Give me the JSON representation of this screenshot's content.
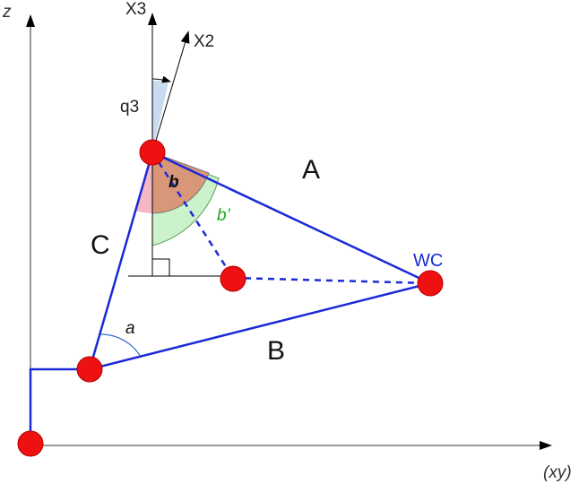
{
  "axes": {
    "vertical_label": "z",
    "horizontal_label": "(xy)"
  },
  "frame_axes": {
    "x3_label": "X3",
    "x2_label": "X2",
    "q3_label": "q3"
  },
  "sides": {
    "a_label": "A",
    "b_label": "B",
    "c_label": "C"
  },
  "angles": {
    "a_label": "a",
    "b_label": "b",
    "b_prime_label": "b’"
  },
  "points": {
    "wrist_center_label": "WC"
  },
  "colors": {
    "link_blue": "#1a2bd6",
    "joint_red": "#ee1111",
    "angle_b_fill": "#d9977a",
    "angle_b_prime_fill": "#ccf2cc",
    "angle_q3_fill": "#c9dcef",
    "angle_pink_fill": "#f4b8c4"
  }
}
